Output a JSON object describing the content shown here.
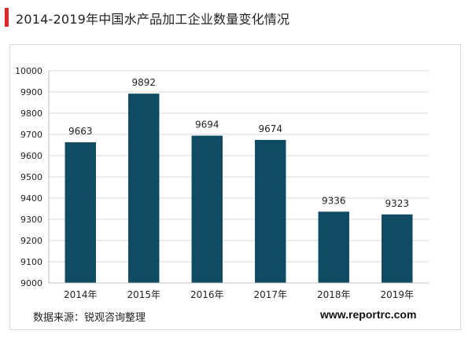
{
  "title": "2014-2019年中国水产品加工企业数量变化情况",
  "source": "数据来源：锐观咨询整理",
  "website": "www.reportrc.com",
  "colors": {
    "accent": "#e3252b",
    "bar": "#0f4c64",
    "grid": "#d9d9d9",
    "axis": "#bfbfbf",
    "text": "#222222"
  },
  "chart_data": {
    "type": "bar",
    "categories": [
      "2014年",
      "2015年",
      "2016年",
      "2017年",
      "2018年",
      "2019年"
    ],
    "values": [
      9663,
      9892,
      9694,
      9674,
      9336,
      9323
    ],
    "data_labels": [
      "9663",
      "9892",
      "9694",
      "9674",
      "9336",
      "9323"
    ],
    "ylim": [
      9000,
      10000
    ],
    "yticks": [
      9000,
      9100,
      9200,
      9300,
      9400,
      9500,
      9600,
      9700,
      9800,
      9900,
      10000
    ],
    "grid": true,
    "legend": "none"
  }
}
